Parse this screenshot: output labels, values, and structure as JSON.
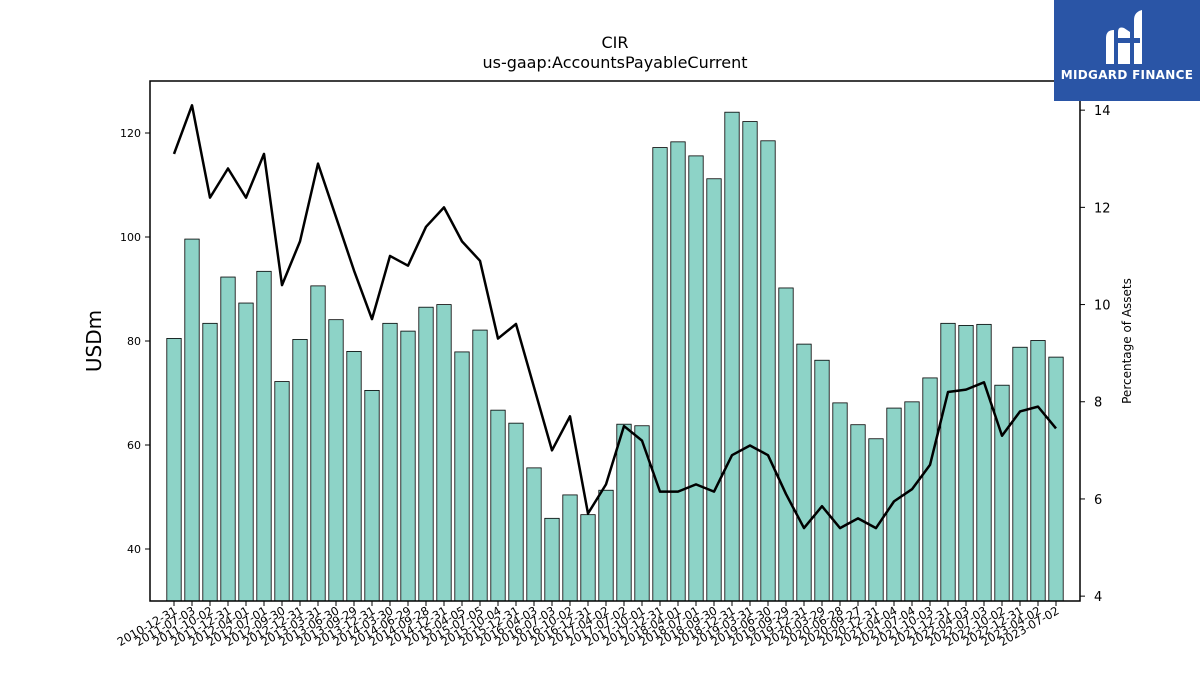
{
  "chart_data": {
    "type": "bar",
    "title": "CIR",
    "subtitle": "us-gaap:AccountsPayableCurrent",
    "ylabel": "USDm",
    "ylabel_right": "Percentage of Assets",
    "ylim": [
      30,
      130
    ],
    "ylim_right": [
      3.9,
      14.6
    ],
    "yticks": [
      40,
      60,
      80,
      100,
      120
    ],
    "yticks_right": [
      4,
      6,
      8,
      10,
      12,
      14
    ],
    "categories": [
      "2010-12-31",
      "2011-07-03",
      "2011-10-02",
      "2011-12-31",
      "2012-04-01",
      "2012-07-01",
      "2012-09-30",
      "2012-12-31",
      "2013-03-31",
      "2013-06-30",
      "2013-09-29",
      "2013-12-31",
      "2014-03-30",
      "2014-06-29",
      "2014-09-28",
      "2014-12-31",
      "2015-04-05",
      "2015-07-05",
      "2015-10-04",
      "2015-12-31",
      "2016-04-03",
      "2016-07-03",
      "2016-10-02",
      "2016-12-31",
      "2017-04-02",
      "2017-07-02",
      "2017-10-01",
      "2017-12-31",
      "2018-04-01",
      "2018-07-01",
      "2018-09-30",
      "2018-12-31",
      "2019-03-31",
      "2019-06-30",
      "2019-09-29",
      "2019-12-31",
      "2020-03-29",
      "2020-06-28",
      "2020-09-27",
      "2020-12-31",
      "2021-04-04",
      "2021-07-04",
      "2021-10-03",
      "2021-12-31",
      "2022-04-03",
      "2022-07-03",
      "2022-10-02",
      "2022-12-31",
      "2023-04-02",
      "2023-07-02"
    ],
    "series": [
      {
        "kind": "bar",
        "axis": "left",
        "color": "#8dd3c7",
        "values": [
          80.5,
          99.6,
          83.4,
          92.3,
          87.3,
          93.4,
          72.2,
          80.3,
          90.6,
          84.1,
          78.0,
          70.5,
          83.4,
          81.9,
          86.5,
          87.0,
          77.9,
          82.1,
          66.7,
          64.2,
          55.6,
          45.9,
          50.4,
          46.6,
          51.3,
          64.0,
          63.7,
          117.2,
          118.3,
          115.6,
          111.2,
          124.0,
          122.2,
          118.5,
          90.2,
          79.4,
          76.3,
          68.1,
          63.9,
          61.2,
          67.1,
          68.3,
          72.9,
          83.4,
          83.0,
          83.2,
          71.5,
          78.8,
          80.1,
          76.9
        ]
      },
      {
        "kind": "line",
        "axis": "right",
        "color": "#000000",
        "values": [
          13.1,
          14.1,
          12.2,
          12.8,
          12.2,
          13.1,
          10.4,
          11.3,
          12.9,
          11.8,
          10.7,
          9.7,
          11.0,
          10.8,
          11.6,
          12.0,
          11.3,
          10.9,
          9.3,
          9.6,
          8.3,
          7.0,
          7.7,
          5.7,
          6.3,
          7.5,
          7.2,
          6.15,
          6.15,
          6.3,
          6.15,
          6.9,
          7.1,
          6.9,
          6.1,
          5.4,
          5.85,
          5.4,
          5.6,
          5.4,
          5.95,
          6.2,
          6.7,
          8.2,
          8.25,
          8.4,
          7.3,
          7.8,
          7.9,
          7.45
        ]
      }
    ],
    "grid": false,
    "legend": "none"
  },
  "logo": {
    "text": "MIDGARD FINANCE",
    "color": "#2a55a6"
  }
}
